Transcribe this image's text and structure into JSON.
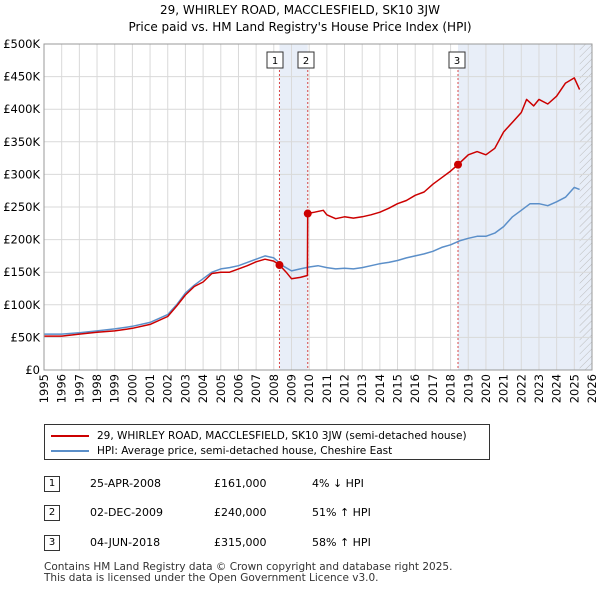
{
  "chart_data": {
    "type": "line",
    "title": "29, WHIRLEY ROAD, MACCLESFIELD, SK10 3JW",
    "subtitle": "Price paid vs. HM Land Registry's House Price Index (HPI)",
    "xlim": [
      1995,
      2026
    ],
    "ylim": [
      0,
      500000
    ],
    "x_ticks": [
      "1995",
      "1996",
      "1997",
      "1998",
      "1999",
      "2000",
      "2001",
      "2002",
      "2003",
      "2004",
      "2005",
      "2006",
      "2007",
      "2008",
      "2009",
      "2010",
      "2011",
      "2012",
      "2013",
      "2014",
      "2015",
      "2016",
      "2017",
      "2018",
      "2019",
      "2020",
      "2021",
      "2022",
      "2023",
      "2024",
      "2025",
      "2026"
    ],
    "y_ticks": [
      {
        "value": 0,
        "label": "£0"
      },
      {
        "value": 50000,
        "label": "£50K"
      },
      {
        "value": 100000,
        "label": "£100K"
      },
      {
        "value": 150000,
        "label": "£150K"
      },
      {
        "value": 200000,
        "label": "£200K"
      },
      {
        "value": 250000,
        "label": "£250K"
      },
      {
        "value": 300000,
        "label": "£300K"
      },
      {
        "value": 350000,
        "label": "£350K"
      },
      {
        "value": 400000,
        "label": "£400K"
      },
      {
        "value": 450000,
        "label": "£450K"
      },
      {
        "value": 500000,
        "label": "£500K"
      }
    ],
    "series": [
      {
        "name": "29, WHIRLEY ROAD, MACCLESFIELD, SK10 3JW (semi-detached house)",
        "color": "#cc0000",
        "points": [
          [
            1995,
            52000
          ],
          [
            1996,
            52000
          ],
          [
            1997,
            55000
          ],
          [
            1998,
            58000
          ],
          [
            1999,
            60000
          ],
          [
            2000,
            64000
          ],
          [
            2001,
            70000
          ],
          [
            2002,
            82000
          ],
          [
            2002.5,
            98000
          ],
          [
            2003,
            115000
          ],
          [
            2003.5,
            128000
          ],
          [
            2004,
            135000
          ],
          [
            2004.5,
            148000
          ],
          [
            2005,
            150000
          ],
          [
            2005.5,
            150000
          ],
          [
            2006,
            155000
          ],
          [
            2006.5,
            160000
          ],
          [
            2007,
            166000
          ],
          [
            2007.5,
            170000
          ],
          [
            2008,
            167000
          ],
          [
            2008.32,
            161000
          ],
          [
            2008.7,
            150000
          ],
          [
            2009,
            140000
          ],
          [
            2009.5,
            142000
          ],
          [
            2009.9,
            145000
          ],
          [
            2009.92,
            240000
          ],
          [
            2010.3,
            242000
          ],
          [
            2010.8,
            245000
          ],
          [
            2011,
            238000
          ],
          [
            2011.5,
            232000
          ],
          [
            2012,
            235000
          ],
          [
            2012.5,
            233000
          ],
          [
            2013,
            235000
          ],
          [
            2013.5,
            238000
          ],
          [
            2014,
            242000
          ],
          [
            2014.5,
            248000
          ],
          [
            2015,
            255000
          ],
          [
            2015.5,
            260000
          ],
          [
            2016,
            268000
          ],
          [
            2016.5,
            273000
          ],
          [
            2017,
            285000
          ],
          [
            2017.5,
            295000
          ],
          [
            2018,
            305000
          ],
          [
            2018.42,
            315000
          ],
          [
            2019,
            330000
          ],
          [
            2019.5,
            335000
          ],
          [
            2020,
            330000
          ],
          [
            2020.5,
            340000
          ],
          [
            2021,
            365000
          ],
          [
            2021.5,
            380000
          ],
          [
            2022,
            395000
          ],
          [
            2022.3,
            415000
          ],
          [
            2022.7,
            405000
          ],
          [
            2023,
            415000
          ],
          [
            2023.5,
            408000
          ],
          [
            2024,
            420000
          ],
          [
            2024.5,
            440000
          ],
          [
            2025,
            448000
          ],
          [
            2025.3,
            430000
          ]
        ]
      },
      {
        "name": "HPI: Average price, semi-detached house, Cheshire East",
        "color": "#5b8fc9",
        "points": [
          [
            1995,
            55000
          ],
          [
            1996,
            55000
          ],
          [
            1997,
            57000
          ],
          [
            1998,
            60000
          ],
          [
            1999,
            63000
          ],
          [
            2000,
            67000
          ],
          [
            2001,
            73000
          ],
          [
            2002,
            85000
          ],
          [
            2002.5,
            100000
          ],
          [
            2003,
            118000
          ],
          [
            2003.5,
            130000
          ],
          [
            2004,
            140000
          ],
          [
            2004.5,
            150000
          ],
          [
            2005,
            155000
          ],
          [
            2005.5,
            157000
          ],
          [
            2006,
            160000
          ],
          [
            2006.5,
            165000
          ],
          [
            2007,
            170000
          ],
          [
            2007.5,
            175000
          ],
          [
            2008,
            172000
          ],
          [
            2008.5,
            160000
          ],
          [
            2009,
            152000
          ],
          [
            2009.5,
            155000
          ],
          [
            2010,
            158000
          ],
          [
            2010.5,
            160000
          ],
          [
            2011,
            157000
          ],
          [
            2011.5,
            155000
          ],
          [
            2012,
            156000
          ],
          [
            2012.5,
            155000
          ],
          [
            2013,
            157000
          ],
          [
            2013.5,
            160000
          ],
          [
            2014,
            163000
          ],
          [
            2014.5,
            165000
          ],
          [
            2015,
            168000
          ],
          [
            2015.5,
            172000
          ],
          [
            2016,
            175000
          ],
          [
            2016.5,
            178000
          ],
          [
            2017,
            182000
          ],
          [
            2017.5,
            188000
          ],
          [
            2018,
            192000
          ],
          [
            2018.5,
            198000
          ],
          [
            2019,
            202000
          ],
          [
            2019.5,
            205000
          ],
          [
            2020,
            205000
          ],
          [
            2020.5,
            210000
          ],
          [
            2021,
            220000
          ],
          [
            2021.5,
            235000
          ],
          [
            2022,
            245000
          ],
          [
            2022.5,
            255000
          ],
          [
            2023,
            255000
          ],
          [
            2023.5,
            252000
          ],
          [
            2024,
            258000
          ],
          [
            2024.5,
            265000
          ],
          [
            2025,
            280000
          ],
          [
            2025.3,
            277000
          ]
        ]
      }
    ],
    "sales": [
      {
        "label": "1",
        "x": 2008.32,
        "value": 161000
      },
      {
        "label": "2",
        "x": 2009.92,
        "value": 240000
      },
      {
        "label": "3",
        "x": 2018.42,
        "value": 315000
      }
    ],
    "shaded_ranges": [
      [
        2008.32,
        2009.92
      ],
      [
        2018.42,
        2026
      ]
    ],
    "hatched_from": 2025.3
  },
  "legend": {
    "property": "29, WHIRLEY ROAD, MACCLESFIELD, SK10 3JW (semi-detached house)",
    "hpi": "HPI: Average price, semi-detached house, Cheshire East"
  },
  "transactions": [
    {
      "num": "1",
      "date": "25-APR-2008",
      "price": "£161,000",
      "delta": "4% ↓ HPI"
    },
    {
      "num": "2",
      "date": "02-DEC-2009",
      "price": "£240,000",
      "delta": "51% ↑ HPI"
    },
    {
      "num": "3",
      "date": "04-JUN-2018",
      "price": "£315,000",
      "delta": "58% ↑ HPI"
    }
  ],
  "footer": {
    "line1": "Contains HM Land Registry data © Crown copyright and database right 2025.",
    "line2": "This data is licensed under the Open Government Licence v3.0."
  },
  "colors": {
    "property": "#cc0000",
    "hpi": "#5b8fc9",
    "shade": "#e8eef8",
    "grid": "#d9d9d9"
  }
}
